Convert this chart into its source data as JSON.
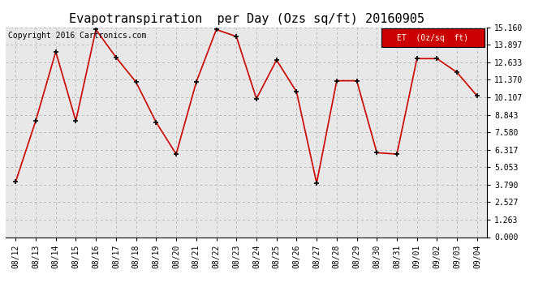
{
  "title": "Evapotranspiration  per Day (Ozs sq/ft) 20160905",
  "copyright_text": "Copyright 2016 Cartronics.com",
  "legend_label": "ET  (0z/sq  ft)",
  "dates": [
    "08/12",
    "08/13",
    "08/14",
    "08/15",
    "08/16",
    "08/17",
    "08/18",
    "08/19",
    "08/20",
    "08/21",
    "08/22",
    "08/23",
    "08/24",
    "08/25",
    "08/26",
    "08/27",
    "08/28",
    "08/29",
    "08/30",
    "08/31",
    "09/01",
    "09/02",
    "09/03",
    "09/04"
  ],
  "values": [
    4.0,
    8.4,
    13.4,
    8.4,
    15.0,
    13.0,
    11.2,
    8.3,
    6.0,
    11.2,
    15.0,
    14.5,
    10.0,
    12.8,
    10.5,
    3.9,
    11.3,
    11.3,
    6.1,
    6.0,
    12.9,
    12.9,
    11.9,
    10.2
  ],
  "ymin": 0.0,
  "ymax": 15.16,
  "yticks": [
    0.0,
    1.263,
    2.527,
    3.79,
    5.053,
    6.317,
    7.58,
    8.843,
    10.107,
    11.37,
    12.633,
    13.897,
    15.16
  ],
  "line_color": "#cc0000",
  "marker_color": "#000000",
  "bg_color": "#ffffff",
  "plot_bg_color": "#e8e8e8",
  "grid_color": "#bbbbbb",
  "legend_bg": "#cc0000",
  "legend_text_color": "#ffffff",
  "title_fontsize": 11,
  "tick_fontsize": 7,
  "copyright_fontsize": 7
}
